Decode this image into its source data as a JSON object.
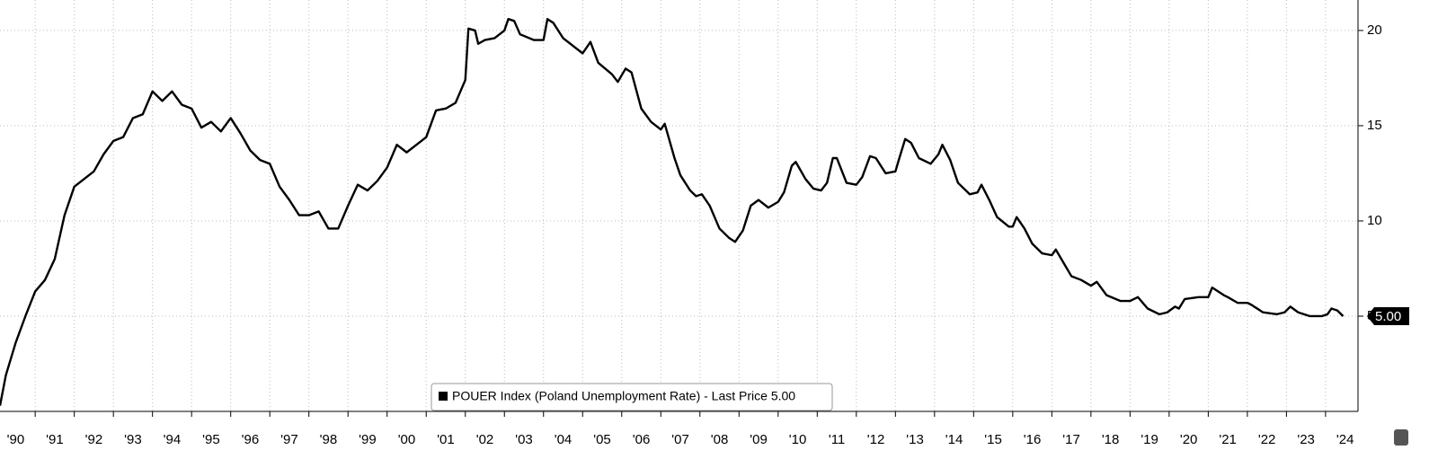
{
  "chart_data": {
    "type": "line",
    "x": [
      1990.1,
      1990.25,
      1990.5,
      1990.75,
      1991,
      1991.25,
      1991.5,
      1991.75,
      1992,
      1992.25,
      1992.5,
      1992.75,
      1993,
      1993.25,
      1993.5,
      1993.75,
      1994,
      1994.25,
      1994.5,
      1994.75,
      1995,
      1995.25,
      1995.5,
      1995.75,
      1996,
      1996.25,
      1996.5,
      1996.75,
      1997,
      1997.25,
      1997.5,
      1997.75,
      1998,
      1998.25,
      1998.5,
      1998.75,
      1999,
      1999.25,
      1999.5,
      1999.75,
      2000,
      2000.25,
      2000.5,
      2000.75,
      2001,
      2001.25,
      2001.5,
      2001.75,
      2002,
      2002.08,
      2002.25,
      2002.33,
      2002.5,
      2002.75,
      2003,
      2003.1,
      2003.25,
      2003.4,
      2003.75,
      2004,
      2004.1,
      2004.25,
      2004.5,
      2004.75,
      2005,
      2005.2,
      2005.4,
      2005.75,
      2005.9,
      2006.1,
      2006.25,
      2006.5,
      2006.75,
      2007,
      2007.1,
      2007.35,
      2007.5,
      2007.75,
      2007.9,
      2008.05,
      2008.25,
      2008.5,
      2008.75,
      2008.9,
      2009.1,
      2009.3,
      2009.5,
      2009.75,
      2010,
      2010.15,
      2010.35,
      2010.45,
      2010.7,
      2010.9,
      2011.1,
      2011.25,
      2011.4,
      2011.5,
      2011.75,
      2012,
      2012.15,
      2012.35,
      2012.5,
      2012.75,
      2013,
      2013.1,
      2013.25,
      2013.4,
      2013.6,
      2013.9,
      2014.1,
      2014.2,
      2014.4,
      2014.6,
      2014.9,
      2015.1,
      2015.2,
      2015.4,
      2015.6,
      2015.9,
      2016,
      2016.1,
      2016.3,
      2016.5,
      2016.75,
      2017,
      2017.1,
      2017.3,
      2017.5,
      2017.75,
      2018,
      2018.15,
      2018.4,
      2018.75,
      2019,
      2019.2,
      2019.45,
      2019.75,
      2019.95,
      2020.15,
      2020.25,
      2020.4,
      2020.75,
      2021,
      2021.1,
      2021.25,
      2021.4,
      2021.5,
      2021.75,
      2022,
      2022.1,
      2022.4,
      2022.75,
      2022.95,
      2023.1,
      2023.3,
      2023.6,
      2023.9,
      2024.05,
      2024.15,
      2024.3,
      2024.45
    ],
    "series": [
      {
        "name": "POUER Index (Poland Unemployment Rate) - Last Price 5.00",
        "color": "#000000",
        "values": [
          0.3,
          1.9,
          3.6,
          5.0,
          6.3,
          6.9,
          8.0,
          10.3,
          11.8,
          12.2,
          12.6,
          13.5,
          14.2,
          14.4,
          15.4,
          15.6,
          16.8,
          16.3,
          16.8,
          16.1,
          15.9,
          14.9,
          15.2,
          14.7,
          15.4,
          14.6,
          13.7,
          13.2,
          13.0,
          11.8,
          11.1,
          10.3,
          10.3,
          10.5,
          9.6,
          9.6,
          10.8,
          11.9,
          11.6,
          12.1,
          12.8,
          14.0,
          13.6,
          14.0,
          14.4,
          15.8,
          15.9,
          16.2,
          17.4,
          20.1,
          20.0,
          19.3,
          19.5,
          19.6,
          20.0,
          20.6,
          20.5,
          19.8,
          19.5,
          19.5,
          20.6,
          20.4,
          19.6,
          19.2,
          18.8,
          19.4,
          18.3,
          17.7,
          17.3,
          18.0,
          17.8,
          15.9,
          15.2,
          14.8,
          15.1,
          13.3,
          12.4,
          11.6,
          11.3,
          11.4,
          10.8,
          9.6,
          9.1,
          8.9,
          9.5,
          10.8,
          11.1,
          10.7,
          11.0,
          11.5,
          12.9,
          13.1,
          12.2,
          11.7,
          11.6,
          12.0,
          13.3,
          13.3,
          12.0,
          11.9,
          12.3,
          13.4,
          13.3,
          12.5,
          12.6,
          13.3,
          14.3,
          14.1,
          13.3,
          13.0,
          13.5,
          14.0,
          13.2,
          12.0,
          11.4,
          11.5,
          11.9,
          11.1,
          10.2,
          9.7,
          9.7,
          10.2,
          9.6,
          8.8,
          8.3,
          8.2,
          8.5,
          7.8,
          7.1,
          6.9,
          6.6,
          6.8,
          6.1,
          5.8,
          5.8,
          6.0,
          5.4,
          5.1,
          5.2,
          5.5,
          5.4,
          5.9,
          6.0,
          6.0,
          6.5,
          6.3,
          6.1,
          6.0,
          5.7,
          5.7,
          5.6,
          5.2,
          5.1,
          5.2,
          5.5,
          5.2,
          5.0,
          5.0,
          5.1,
          5.4,
          5.3,
          5.0
        ]
      }
    ],
    "last_price": {
      "value": 5,
      "label": "5.00"
    },
    "xlim": [
      1990.1,
      2024.83
    ],
    "xticks": [
      {
        "value": 1990.5,
        "label": "'90"
      },
      {
        "value": 1991.5,
        "label": "'91"
      },
      {
        "value": 1992.5,
        "label": "'92"
      },
      {
        "value": 1993.5,
        "label": "'93"
      },
      {
        "value": 1994.5,
        "label": "'94"
      },
      {
        "value": 1995.5,
        "label": "'95"
      },
      {
        "value": 1996.5,
        "label": "'96"
      },
      {
        "value": 1997.5,
        "label": "'97"
      },
      {
        "value": 1998.5,
        "label": "'98"
      },
      {
        "value": 1999.5,
        "label": "'99"
      },
      {
        "value": 2000.5,
        "label": "'00"
      },
      {
        "value": 2001.5,
        "label": "'01"
      },
      {
        "value": 2002.5,
        "label": "'02"
      },
      {
        "value": 2003.5,
        "label": "'03"
      },
      {
        "value": 2004.5,
        "label": "'04"
      },
      {
        "value": 2005.5,
        "label": "'05"
      },
      {
        "value": 2006.5,
        "label": "'06"
      },
      {
        "value": 2007.5,
        "label": "'07"
      },
      {
        "value": 2008.5,
        "label": "'08"
      },
      {
        "value": 2009.5,
        "label": "'09"
      },
      {
        "value": 2010.5,
        "label": "'10"
      },
      {
        "value": 2011.5,
        "label": "'11"
      },
      {
        "value": 2012.5,
        "label": "'12"
      },
      {
        "value": 2013.5,
        "label": "'13"
      },
      {
        "value": 2014.5,
        "label": "'14"
      },
      {
        "value": 2015.5,
        "label": "'15"
      },
      {
        "value": 2016.5,
        "label": "'16"
      },
      {
        "value": 2017.5,
        "label": "'17"
      },
      {
        "value": 2018.5,
        "label": "'18"
      },
      {
        "value": 2019.5,
        "label": "'19"
      },
      {
        "value": 2020.5,
        "label": "'20"
      },
      {
        "value": 2021.5,
        "label": "'21"
      },
      {
        "value": 2022.5,
        "label": "'22"
      },
      {
        "value": 2023.5,
        "label": "'23"
      },
      {
        "value": 2024.5,
        "label": "'24"
      }
    ],
    "ylim": [
      0,
      21.6
    ],
    "yticks": [
      5,
      10,
      15,
      20
    ],
    "grid": true
  }
}
